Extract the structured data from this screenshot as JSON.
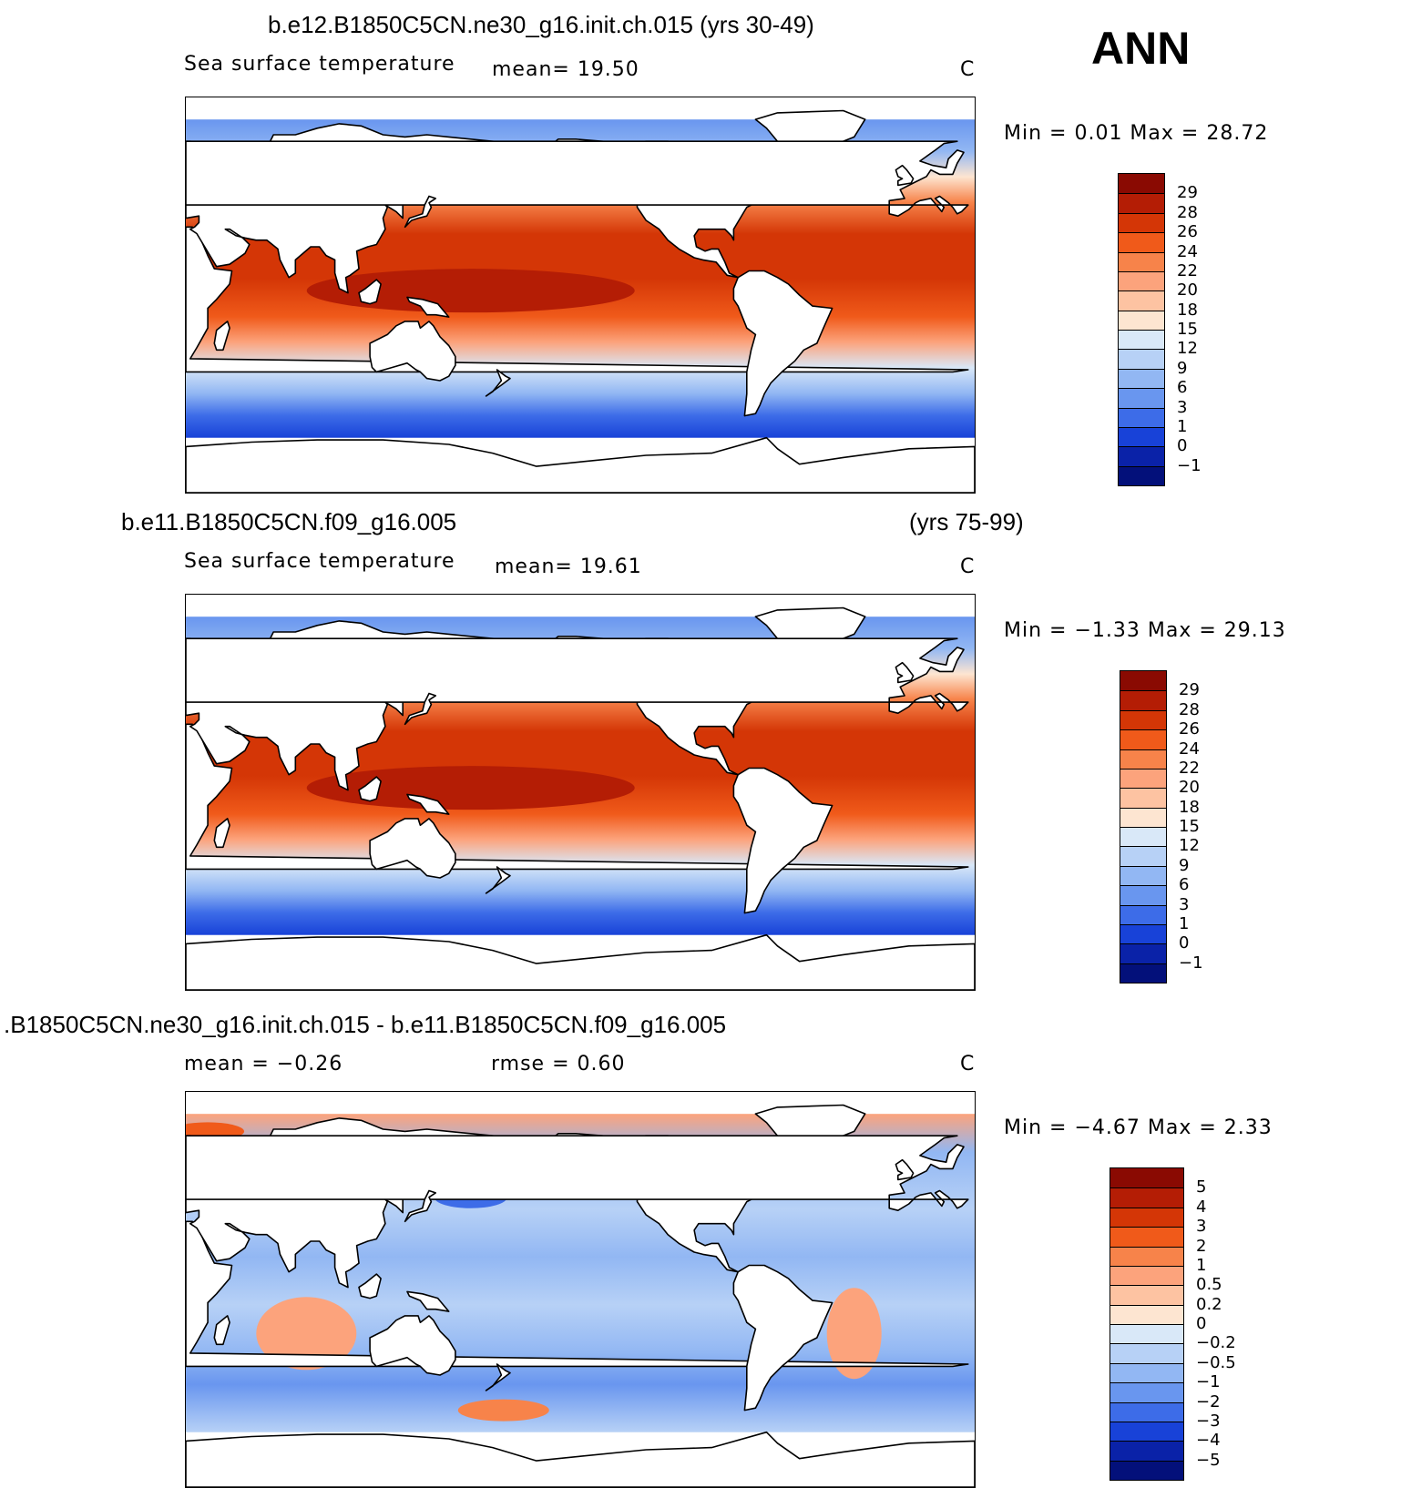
{
  "season": "ANN",
  "panels": [
    {
      "title_left": "b.e12.B1850C5CN.ne30_g16.init.ch.015 (yrs 30-49)",
      "title_right": "",
      "variable": "Sea surface temperature",
      "stat1": "mean=    19.50",
      "stat2": "",
      "units": "C",
      "minmax": "Min =    0.01  Max =   28.72",
      "colorbar": {
        "labels": [
          "29",
          "28",
          "26",
          "24",
          "22",
          "20",
          "18",
          "15",
          "12",
          "9",
          "6",
          "3",
          "1",
          "0",
          "−1"
        ],
        "colors": [
          "#8a0a02",
          "#b41d05",
          "#d43606",
          "#f05a1a",
          "#f7834a",
          "#fca37c",
          "#fdc3a2",
          "#fde5d1",
          "#d9e8f8",
          "#b7d1f6",
          "#92b7f3",
          "#6996ef",
          "#3d6ce8",
          "#1842d8",
          "#0a22a8",
          "#03107a"
        ]
      }
    },
    {
      "title_left": "b.e11.B1850C5CN.f09_g16.005",
      "title_right": "(yrs 75-99)",
      "variable": "Sea surface temperature",
      "stat1": "mean=    19.61",
      "stat2": "",
      "units": "C",
      "minmax": "Min =  −1.33  Max =   29.13",
      "colorbar": {
        "labels": [
          "29",
          "28",
          "26",
          "24",
          "22",
          "20",
          "18",
          "15",
          "12",
          "9",
          "6",
          "3",
          "1",
          "0",
          "−1"
        ],
        "colors": [
          "#8a0a02",
          "#b41d05",
          "#d43606",
          "#f05a1a",
          "#f7834a",
          "#fca37c",
          "#fdc3a2",
          "#fde5d1",
          "#d9e8f8",
          "#b7d1f6",
          "#92b7f3",
          "#6996ef",
          "#3d6ce8",
          "#1842d8",
          "#0a22a8",
          "#03107a"
        ]
      }
    },
    {
      "title_left": ".B1850C5CN.ne30_g16.init.ch.015 - b.e11.B1850C5CN.f09_g16.005",
      "title_right": "",
      "variable": "",
      "stat1": "mean =   −0.26",
      "stat2": "rmse =    0.60",
      "units": "C",
      "minmax": "Min =  −4.67  Max =    2.33",
      "colorbar": {
        "labels": [
          "5",
          "4",
          "3",
          "2",
          "1",
          "0.5",
          "0.2",
          "0",
          "−0.2",
          "−0.5",
          "−1",
          "−2",
          "−3",
          "−4",
          "−5"
        ],
        "colors": [
          "#8a0a02",
          "#b41d05",
          "#d43606",
          "#f05a1a",
          "#f7834a",
          "#fca37c",
          "#fdc3a2",
          "#fde5d1",
          "#d9e8f8",
          "#b7d1f6",
          "#92b7f3",
          "#6996ef",
          "#3d6ce8",
          "#1842d8",
          "#0a22a8",
          "#03107a"
        ]
      }
    }
  ]
}
